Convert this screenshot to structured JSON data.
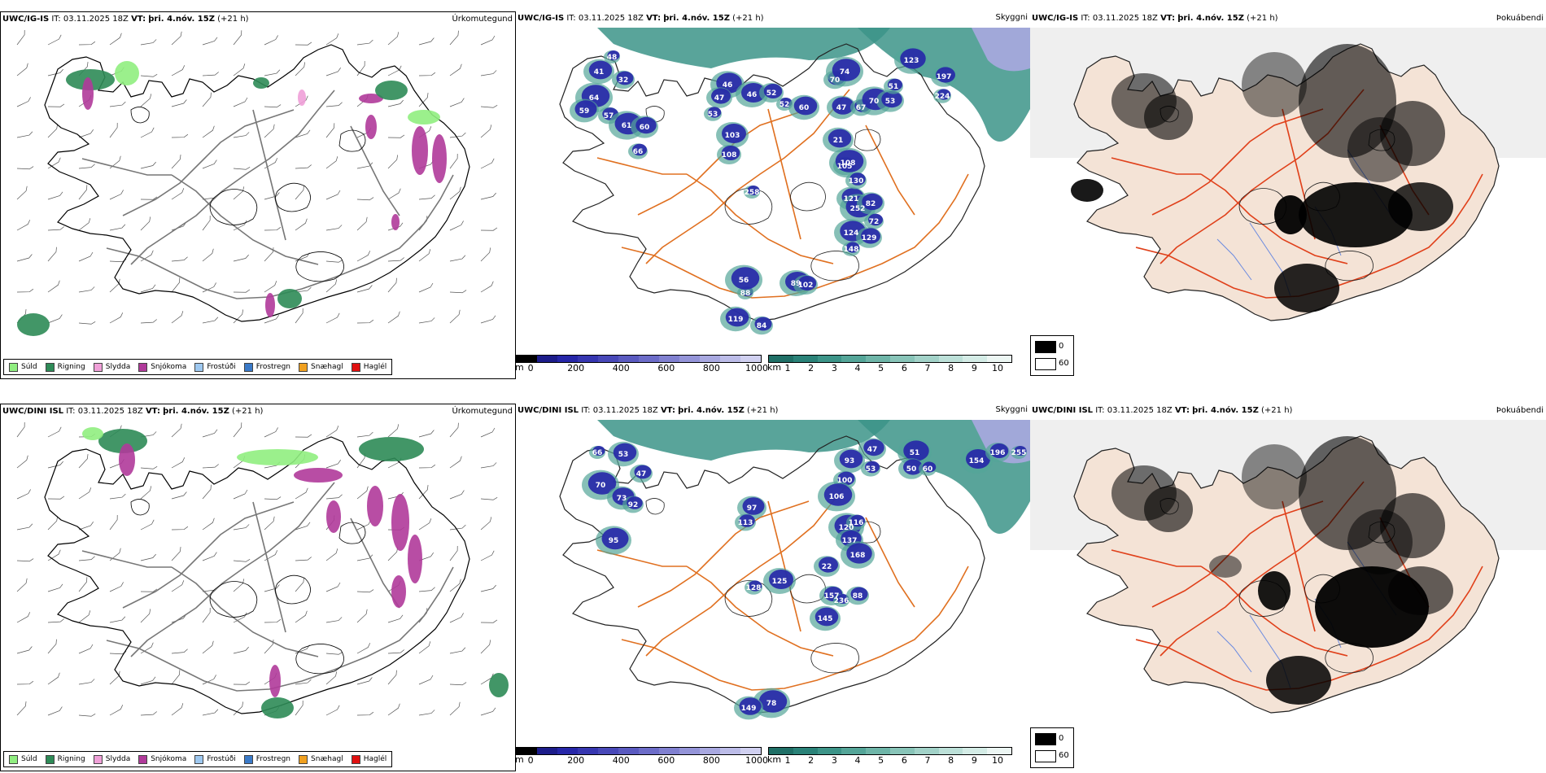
{
  "rows": [
    {
      "model": "UWC/IG-IS",
      "it_label": "IT:",
      "it_value": "03.11.2025 18Z",
      "vt_label": "VT:",
      "vt_value": "þri. 4.nóv. 15Z",
      "lead": "(+21 h)",
      "precip_title": "Úrkomutegund",
      "vis_title": "Skyggni",
      "fog_title": "Þokuábendi",
      "ceiling_numbers": [
        "48",
        "41",
        "32",
        "64",
        "59",
        "57",
        "61",
        "60",
        "66",
        "46",
        "47",
        "53",
        "46",
        "52",
        "52",
        "60",
        "70",
        "74",
        "47",
        "67",
        "70",
        "53",
        "51",
        "123",
        "197",
        "224",
        "103",
        "108",
        "258",
        "21",
        "105",
        "108",
        "121",
        "130",
        "252",
        "82",
        "72",
        "124",
        "129",
        "148",
        "89",
        "102",
        "88",
        "119",
        "84",
        "56"
      ],
      "precip_tag": "top"
    },
    {
      "model": "UWC/DINI ISL",
      "it_label": "IT:",
      "it_value": "03.11.2025 18Z",
      "vt_label": "VT:",
      "vt_value": "þri. 4.nóv. 15Z",
      "lead": "(+21 h)",
      "precip_title": "Úrkomutegund",
      "vis_title": "Skyggni",
      "fog_title": "Þokuábendi",
      "ceiling_numbers": [
        "66",
        "53",
        "47",
        "70",
        "73",
        "92",
        "95",
        "47",
        "53",
        "51",
        "50",
        "60",
        "154",
        "196",
        "255",
        "93",
        "100",
        "106",
        "97",
        "113",
        "120",
        "137",
        "116",
        "168",
        "22",
        "128",
        "125",
        "157",
        "236",
        "145",
        "88",
        "78",
        "149"
      ],
      "precip_tag": "bottom"
    }
  ],
  "precip_legend": [
    {
      "label": "Súld",
      "color": "#90ee80"
    },
    {
      "label": "Rigning",
      "color": "#2e8b57"
    },
    {
      "label": "Slydda",
      "color": "#f0a0d8"
    },
    {
      "label": "Snjókoma",
      "color": "#b03a9a"
    },
    {
      "label": "Frostúði",
      "color": "#9ec8f0"
    },
    {
      "label": "Frostregn",
      "color": "#3a7ac8"
    },
    {
      "label": "Snæhagl",
      "color": "#f0a020"
    },
    {
      "label": "Haglél",
      "color": "#e01010"
    }
  ],
  "ceiling_scale": {
    "unit": "m",
    "ticks": [
      "0",
      "200",
      "400",
      "600",
      "800",
      "1000"
    ],
    "colors": [
      "#000000",
      "#1c1c8a",
      "#2626a8",
      "#3636b0",
      "#4848b8",
      "#5a5ac0",
      "#6c6cc8",
      "#8080d0",
      "#9494d8",
      "#a8a8e0",
      "#bcbce8",
      "#d0d0f0"
    ]
  },
  "visibility_scale": {
    "unit": "km",
    "ticks": [
      "1",
      "2",
      "3",
      "4",
      "5",
      "6",
      "7",
      "8",
      "9",
      "10"
    ],
    "colors": [
      "#1f6f66",
      "#2a8278",
      "#3c9488",
      "#54a598",
      "#6eb5a8",
      "#88c4b8",
      "#a2d2c8",
      "#bce0d8",
      "#d4ece6",
      "#ecf6f3"
    ]
  },
  "fog_legend": {
    "high": "0",
    "low": "60",
    "high_color": "#000000",
    "low_color": "#ffffff"
  },
  "colors": {
    "coast": "#000000",
    "road": "#e07020",
    "fog_road": "#e0401a",
    "river": "#6a8ae0",
    "land_fog": "#f4e3d6",
    "sea_vis": "#3c9488"
  }
}
